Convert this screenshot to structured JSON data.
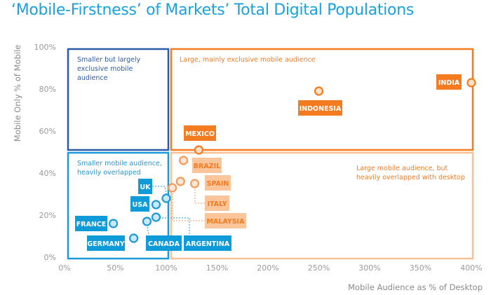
{
  "chart_data": {
    "type": "scatter",
    "title": "‘Mobile-Firstness’ of Markets’ Total Digital Populations",
    "xlabel": "Mobile Audience as % of Desktop",
    "ylabel": "Mobile Only % of Mobile",
    "xlim": [
      0,
      400
    ],
    "ylim": [
      0,
      100
    ],
    "x_ticks": [
      "0%",
      "50%",
      "100%",
      "150%",
      "200%",
      "250%",
      "300%",
      "350%",
      "400%"
    ],
    "y_ticks": [
      "0%",
      "20%",
      "40%",
      "60%",
      "80%",
      "100%"
    ],
    "grid": false,
    "quadrants": [
      {
        "label": "Smaller but largely exclusive mobile audience",
        "color": "#2b5ba8"
      },
      {
        "label": "Large, mainly exclusive mobile audience",
        "color": "#f47b20"
      },
      {
        "label": "Smaller mobile audience, heavily overlapped",
        "color": "#1a9ad6"
      },
      {
        "label": "Large mobile audience, but heavily overlapped with desktop",
        "color": "#fbbf94"
      }
    ],
    "points": [
      {
        "label": "INDIA",
        "x": 400,
        "y": 83,
        "group": "orange"
      },
      {
        "label": "INDONESIA",
        "x": 250,
        "y": 79,
        "group": "orange"
      },
      {
        "label": "MEXICO",
        "x": 132,
        "y": 51,
        "group": "orange"
      },
      {
        "label": "BRAZIL",
        "x": 117,
        "y": 46,
        "group": "light-orange"
      },
      {
        "label": "SPAIN",
        "x": 114,
        "y": 36,
        "group": "light-orange"
      },
      {
        "label": "ITALY",
        "x": 128,
        "y": 35,
        "group": "light-orange"
      },
      {
        "label": "MALAYSIA",
        "x": 106,
        "y": 33,
        "group": "light-orange"
      },
      {
        "label": "UK",
        "x": 100,
        "y": 28,
        "group": "blue"
      },
      {
        "label": "USA",
        "x": 90,
        "y": 25,
        "group": "blue"
      },
      {
        "label": "FRANCE",
        "x": 48,
        "y": 16,
        "group": "blue"
      },
      {
        "label": "GERMANY",
        "x": 68,
        "y": 9,
        "group": "blue"
      },
      {
        "label": "CANADA",
        "x": 81,
        "y": 17,
        "group": "blue"
      },
      {
        "label": "ARGENTINA",
        "x": 90,
        "y": 19,
        "group": "blue"
      }
    ]
  }
}
